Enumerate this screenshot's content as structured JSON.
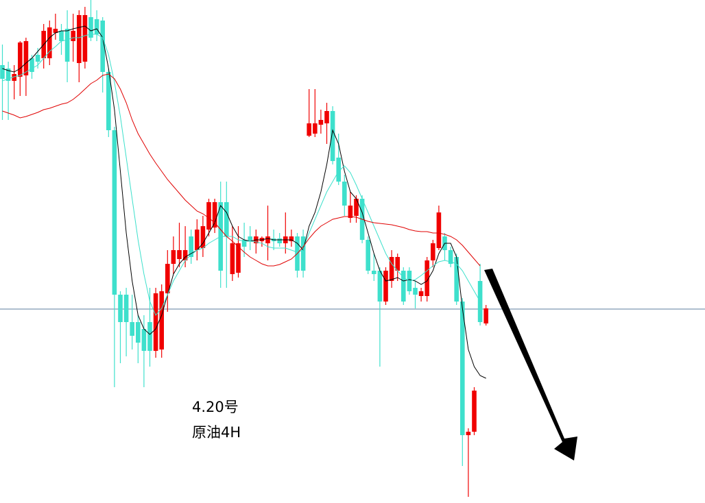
{
  "chart_data": {
    "type": "candlestick",
    "annotations": [
      "4.20号",
      "原油4H"
    ],
    "ylim": [
      0,
      734
    ],
    "up_color": "#f00000",
    "down_color": "#3ee0cc",
    "open": [
      639,
      634,
      616,
      622,
      624,
      649,
      654,
      649,
      649,
      686,
      689,
      692,
      674,
      642,
      644,
      709,
      706,
      704,
      629,
      544,
      304,
      304,
      264,
      264,
      254,
      264,
      222,
      224,
      306,
      349,
      356,
      354,
      389,
      369,
      372,
      399,
      402,
      439,
      439,
      334,
      336,
      384,
      389,
      379,
      382,
      379,
      386,
      386,
      379,
      382,
      389,
      389,
      536,
      539,
      552,
      554,
      572,
      504,
      469,
      416,
      419,
      444,
      384,
      339,
      339,
      294,
      324,
      339,
      339,
      339,
      314,
      302,
      302,
      354,
      372,
      389,
      369,
      359,
      294,
      99,
      104,
      324,
      262
    ],
    "high": [
      669,
      644,
      639,
      674,
      679,
      654,
      664,
      699,
      704,
      714,
      699,
      719,
      714,
      719,
      724,
      734,
      719,
      709,
      634,
      549,
      309,
      314,
      304,
      274,
      274,
      314,
      314,
      319,
      369,
      389,
      409,
      404,
      399,
      414,
      419,
      444,
      444,
      469,
      469,
      404,
      404,
      409,
      404,
      399,
      389,
      434,
      399,
      394,
      424,
      399,
      394,
      399,
      604,
      604,
      574,
      584,
      579,
      539,
      479,
      454,
      449,
      449,
      389,
      364,
      344,
      344,
      369,
      364,
      344,
      344,
      324,
      314,
      359,
      384,
      434,
      394,
      374,
      364,
      299,
      109,
      169,
      349,
      289
    ],
    "low": [
      559,
      559,
      589,
      594,
      594,
      619,
      634,
      634,
      639,
      676,
      654,
      614,
      644,
      614,
      634,
      674,
      674,
      599,
      534,
      169,
      204,
      214,
      224,
      204,
      169,
      199,
      212,
      212,
      279,
      334,
      344,
      344,
      349,
      354,
      359,
      389,
      394,
      314,
      314,
      324,
      329,
      359,
      369,
      364,
      374,
      354,
      369,
      374,
      364,
      374,
      329,
      329,
      534,
      534,
      539,
      524,
      494,
      464,
      419,
      409,
      409,
      379,
      334,
      324,
      199,
      289,
      314,
      324,
      289,
      304,
      284,
      294,
      294,
      344,
      369,
      354,
      344,
      289,
      54,
      9,
      99,
      259,
      259
    ],
    "close": [
      619,
      616,
      626,
      672,
      674,
      629,
      644,
      689,
      694,
      692,
      674,
      644,
      689,
      712,
      712,
      679,
      684,
      629,
      544,
      304,
      264,
      264,
      244,
      234,
      222,
      222,
      306,
      309,
      349,
      369,
      369,
      369,
      359,
      399,
      404,
      439,
      439,
      339,
      389,
      379,
      379,
      374,
      382,
      389,
      387,
      389,
      382,
      379,
      389,
      389,
      339,
      339,
      554,
      554,
      559,
      572,
      499,
      469,
      434,
      434,
      444,
      384,
      339,
      334,
      294,
      339,
      359,
      359,
      294,
      309,
      304,
      309,
      354,
      379,
      424,
      369,
      349,
      294,
      99,
      104,
      164,
      264,
      284
    ],
    "lines": [
      {
        "color": "#000000",
        "values": [
          634,
          631,
          629,
          634,
          642,
          649,
          659,
          669,
          679,
          686,
          689,
          689,
          692,
          694,
          696,
          689,
          692,
          679,
          634,
          574,
          484,
          394,
          324,
          274,
          254,
          246,
          254,
          274,
          304,
          334,
          349,
          359,
          364,
          369,
          379,
          394,
          409,
          434,
          424,
          404,
          389,
          384,
          382,
          384,
          384,
          386,
          384,
          384,
          384,
          384,
          379,
          369,
          404,
          424,
          454,
          494,
          544,
          524,
          484,
          454,
          444,
          424,
          394,
          364,
          339,
          324,
          326,
          329,
          324,
          326,
          324,
          319,
          324,
          339,
          364,
          379,
          379,
          359,
          284,
          224,
          199,
          186,
          182
        ]
      },
      {
        "color": "#3ee0cc",
        "values": [
          616,
          619,
          622,
          624,
          629,
          634,
          639,
          649,
          659,
          666,
          674,
          676,
          679,
          679,
          682,
          684,
          684,
          679,
          654,
          614,
          564,
          504,
          444,
          384,
          334,
          294,
          274,
          284,
          304,
          324,
          339,
          354,
          362,
          369,
          372,
          379,
          384,
          389,
          389,
          389,
          384,
          382,
          382,
          381,
          379,
          374,
          372,
          372,
          372,
          369,
          366,
          369,
          394,
          414,
          434,
          454,
          469,
          484,
          492,
          482,
          464,
          444,
          424,
          404,
          384,
          364,
          349,
          339,
          329,
          324,
          326,
          332,
          339,
          346,
          352,
          354,
          352,
          349,
          339,
          324,
          309,
          294,
          null
        ]
      },
      {
        "color": "#e00000",
        "values": [
          572,
          569,
          566,
          562,
          564,
          567,
          570,
          574,
          576,
          579,
          582,
          584,
          589,
          596,
          604,
          612,
          617,
          624,
          626,
          619,
          604,
          584,
          559,
          539,
          524,
          509,
          496,
          484,
          472,
          462,
          452,
          442,
          434,
          426,
          422,
          416,
          409,
          399,
          389,
          382,
          374,
          366,
          359,
          354,
          349,
          346,
          346,
          348,
          352,
          356,
          364,
          374,
          386,
          396,
          404,
          409,
          414,
          416,
          418,
          418,
          417,
          414,
          411,
          409,
          408,
          407,
          406,
          404,
          402,
          399,
          397,
          396,
          396,
          394,
          394,
          392,
          389,
          384,
          376,
          366,
          356,
          346,
          null
        ]
      }
    ],
    "hline": {
      "value": 283,
      "color": "#5b7e9c"
    }
  }
}
